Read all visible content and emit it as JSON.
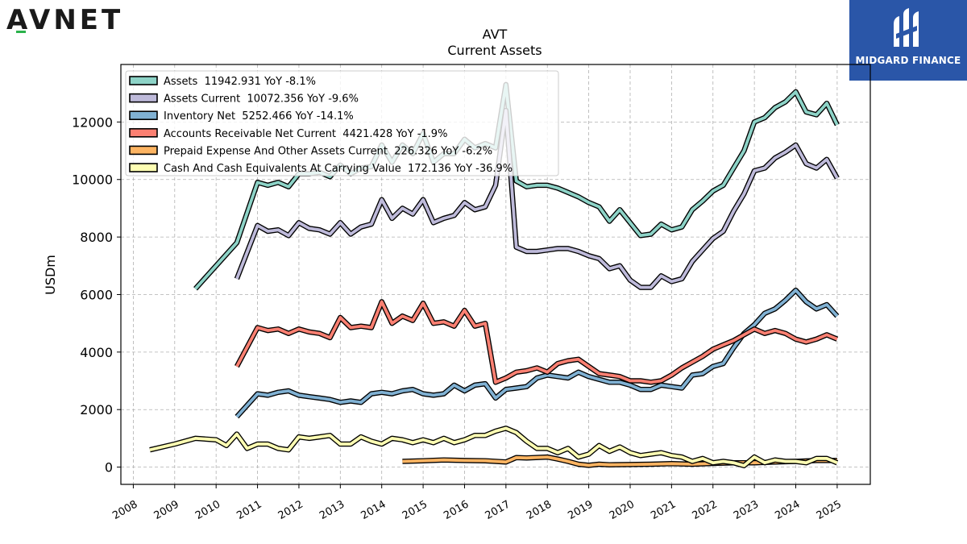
{
  "brand_left": {
    "text": "AVNET",
    "accent_color": "#2bb24c"
  },
  "brand_right": {
    "text": "MIDGARD FINANCE",
    "bg_color": "#2a56a8"
  },
  "chart_data": {
    "type": "line",
    "title": "AVT",
    "subtitle": "Current  Assets",
    "ylabel": "USDm",
    "xlabel": "",
    "xlim": [
      2007.7,
      2025.8
    ],
    "ylim": [
      -600,
      14000
    ],
    "yticks": [
      0,
      2000,
      4000,
      6000,
      8000,
      10000,
      12000
    ],
    "xticks": [
      "2008",
      "2009",
      "2010",
      "2011",
      "2012",
      "2013",
      "2014",
      "2015",
      "2016",
      "2017",
      "2018",
      "2019",
      "2020",
      "2021",
      "2022",
      "2023",
      "2024",
      "2025"
    ],
    "grid": true,
    "legend_position": "top-left",
    "series": [
      {
        "name": "Assets",
        "legend": "Assets  11942.931 YoY -8.1%",
        "color": "#8dd3c7",
        "x": [
          2009.5,
          2010.5,
          2011.0,
          2011.25,
          2011.5,
          2011.75,
          2012.0,
          2012.25,
          2012.5,
          2012.75,
          2013.0,
          2013.25,
          2013.5,
          2013.75,
          2014.0,
          2014.25,
          2014.5,
          2014.75,
          2015.0,
          2015.25,
          2015.5,
          2015.75,
          2016.0,
          2016.25,
          2016.5,
          2016.75,
          2017.0,
          2017.25,
          2017.5,
          2017.75,
          2018.0,
          2018.25,
          2018.5,
          2018.75,
          2019.0,
          2019.25,
          2019.5,
          2019.75,
          2020.0,
          2020.25,
          2020.5,
          2020.75,
          2021.0,
          2021.25,
          2021.5,
          2021.75,
          2022.0,
          2022.25,
          2022.5,
          2022.75,
          2023.0,
          2023.25,
          2023.5,
          2023.75,
          2024.0,
          2024.25,
          2024.5,
          2024.75,
          2025.0
        ],
        "y": [
          6200,
          7800,
          9900,
          9800,
          9900,
          9750,
          10200,
          10200,
          10250,
          10100,
          10500,
          10200,
          10400,
          10450,
          11200,
          10600,
          11200,
          10900,
          11600,
          10600,
          10900,
          10900,
          11400,
          11100,
          11250,
          11100,
          13300,
          9950,
          9750,
          9800,
          9800,
          9700,
          9550,
          9400,
          9200,
          9050,
          8550,
          8950,
          8500,
          8050,
          8100,
          8450,
          8250,
          8350,
          8950,
          9250,
          9600,
          9800,
          10400,
          11000,
          12000,
          12150,
          12500,
          12700,
          13050,
          12350,
          12250,
          12650,
          11900
        ]
      },
      {
        "name": "Assets Current",
        "legend": "Assets Current  10072.356 YoY -9.6%",
        "color": "#bebada",
        "x": [
          2010.5,
          2011.0,
          2011.25,
          2011.5,
          2011.75,
          2012.0,
          2012.25,
          2012.5,
          2012.75,
          2013.0,
          2013.25,
          2013.5,
          2013.75,
          2014.0,
          2014.25,
          2014.5,
          2014.75,
          2015.0,
          2015.25,
          2015.5,
          2015.75,
          2016.0,
          2016.25,
          2016.5,
          2016.75,
          2017.0,
          2017.25,
          2017.5,
          2017.75,
          2018.0,
          2018.25,
          2018.5,
          2018.75,
          2019.0,
          2019.25,
          2019.5,
          2019.75,
          2020.0,
          2020.25,
          2020.5,
          2020.75,
          2021.0,
          2021.25,
          2021.5,
          2021.75,
          2022.0,
          2022.25,
          2022.5,
          2022.75,
          2023.0,
          2023.25,
          2023.5,
          2023.75,
          2024.0,
          2024.25,
          2024.5,
          2024.75,
          2025.0
        ],
        "y": [
          6550,
          8400,
          8200,
          8250,
          8050,
          8500,
          8300,
          8250,
          8100,
          8500,
          8100,
          8350,
          8450,
          9300,
          8650,
          9000,
          8800,
          9300,
          8500,
          8650,
          8750,
          9200,
          8950,
          9050,
          9800,
          12400,
          7650,
          7500,
          7500,
          7550,
          7600,
          7600,
          7500,
          7350,
          7250,
          6900,
          7000,
          6500,
          6250,
          6250,
          6650,
          6450,
          6550,
          7150,
          7550,
          7950,
          8200,
          8900,
          9500,
          10300,
          10400,
          10750,
          10950,
          11200,
          10550,
          10400,
          10700,
          10050
        ]
      },
      {
        "name": "Inventory Net",
        "legend": "Inventory Net  5252.466 YoY -14.1%",
        "color": "#80b1d3",
        "x": [
          2010.5,
          2011.0,
          2011.25,
          2011.5,
          2011.75,
          2012.0,
          2012.25,
          2012.5,
          2012.75,
          2013.0,
          2013.25,
          2013.5,
          2013.75,
          2014.0,
          2014.25,
          2014.5,
          2014.75,
          2015.0,
          2015.25,
          2015.5,
          2015.75,
          2016.0,
          2016.25,
          2016.5,
          2016.75,
          2017.0,
          2017.25,
          2017.5,
          2017.75,
          2018.0,
          2018.25,
          2018.5,
          2018.75,
          2019.0,
          2019.25,
          2019.5,
          2019.75,
          2020.0,
          2020.25,
          2020.5,
          2020.75,
          2021.0,
          2021.25,
          2021.5,
          2021.75,
          2022.0,
          2022.25,
          2022.5,
          2022.75,
          2023.0,
          2023.25,
          2023.5,
          2023.75,
          2024.0,
          2024.25,
          2024.5,
          2024.75,
          2025.0
        ],
        "y": [
          1750,
          2550,
          2500,
          2600,
          2650,
          2500,
          2450,
          2400,
          2350,
          2250,
          2300,
          2250,
          2550,
          2600,
          2550,
          2650,
          2700,
          2550,
          2500,
          2550,
          2850,
          2650,
          2850,
          2900,
          2400,
          2700,
          2750,
          2800,
          3100,
          3200,
          3150,
          3100,
          3300,
          3150,
          3050,
          2950,
          2950,
          2850,
          2700,
          2700,
          2850,
          2800,
          2750,
          3200,
          3250,
          3500,
          3600,
          4150,
          4650,
          4950,
          5350,
          5500,
          5800,
          6150,
          5750,
          5500,
          5650,
          5250
        ]
      },
      {
        "name": "Accounts Receivable Net Current",
        "legend": "Accounts Receivable Net Current  4421.428 YoY -1.9%",
        "color": "#fb8072",
        "x": [
          2010.5,
          2011.0,
          2011.25,
          2011.5,
          2011.75,
          2012.0,
          2012.25,
          2012.5,
          2012.75,
          2013.0,
          2013.25,
          2013.5,
          2013.75,
          2014.0,
          2014.25,
          2014.5,
          2014.75,
          2015.0,
          2015.25,
          2015.5,
          2015.75,
          2016.0,
          2016.25,
          2016.5,
          2016.75,
          2017.0,
          2017.25,
          2017.5,
          2017.75,
          2018.0,
          2018.25,
          2018.5,
          2018.75,
          2019.0,
          2019.25,
          2019.5,
          2019.75,
          2020.0,
          2020.25,
          2020.5,
          2020.75,
          2021.0,
          2021.25,
          2021.5,
          2021.75,
          2022.0,
          2022.25,
          2022.5,
          2022.75,
          2023.0,
          2023.25,
          2023.5,
          2023.75,
          2024.0,
          2024.25,
          2024.5,
          2024.75,
          2025.0
        ],
        "y": [
          3500,
          4850,
          4750,
          4800,
          4650,
          4800,
          4700,
          4650,
          4500,
          5200,
          4850,
          4900,
          4850,
          5750,
          5000,
          5250,
          5100,
          5700,
          5000,
          5050,
          4900,
          5450,
          4900,
          5000,
          2950,
          3100,
          3300,
          3350,
          3450,
          3300,
          3600,
          3700,
          3750,
          3500,
          3250,
          3200,
          3150,
          3000,
          3000,
          2950,
          3000,
          3200,
          3450,
          3650,
          3850,
          4100,
          4250,
          4400,
          4600,
          4800,
          4650,
          4750,
          4650,
          4450,
          4350,
          4450,
          4600,
          4450
        ]
      },
      {
        "name": "Prepaid Expense And Other Assets Current",
        "legend": "Prepaid Expense And Other Assets Current  226.326 YoY -6.2%",
        "color": "#fdb462",
        "x": [
          2014.5,
          2015.0,
          2015.5,
          2016.0,
          2016.5,
          2017.0,
          2017.25,
          2017.5,
          2018.0,
          2018.25,
          2018.5,
          2018.75,
          2019.0,
          2019.25,
          2019.5,
          2020.0,
          2020.5,
          2021.0,
          2021.5,
          2022.0,
          2022.5,
          2023.0,
          2023.5,
          2024.0,
          2024.5,
          2025.0
        ],
        "y": [
          200,
          220,
          250,
          230,
          220,
          180,
          330,
          320,
          350,
          280,
          200,
          100,
          60,
          100,
          80,
          90,
          100,
          120,
          100,
          130,
          150,
          150,
          180,
          200,
          230,
          230
        ]
      },
      {
        "name": "Cash And Cash Equivalents At Carrying Value",
        "legend": "Cash And Cash Equivalents At Carrying Value  172.136 YoY -36.9%",
        "color": "#ffffb3",
        "x": [
          2008.4,
          2009.0,
          2009.5,
          2010.0,
          2010.25,
          2010.5,
          2010.75,
          2011.0,
          2011.25,
          2011.5,
          2011.75,
          2012.0,
          2012.25,
          2012.5,
          2012.75,
          2013.0,
          2013.25,
          2013.5,
          2013.75,
          2014.0,
          2014.25,
          2014.5,
          2014.75,
          2015.0,
          2015.25,
          2015.5,
          2015.75,
          2016.0,
          2016.25,
          2016.5,
          2016.75,
          2017.0,
          2017.25,
          2017.5,
          2017.75,
          2018.0,
          2018.25,
          2018.5,
          2018.75,
          2019.0,
          2019.25,
          2019.5,
          2019.75,
          2020.0,
          2020.25,
          2020.5,
          2020.75,
          2021.0,
          2021.25,
          2021.5,
          2021.75,
          2022.0,
          2022.25,
          2022.5,
          2022.75,
          2023.0,
          2023.25,
          2023.5,
          2023.75,
          2024.0,
          2024.25,
          2024.5,
          2024.75,
          2025.0
        ],
        "y": [
          600,
          800,
          1000,
          950,
          750,
          1150,
          650,
          800,
          800,
          650,
          600,
          1050,
          1000,
          1050,
          1100,
          800,
          800,
          1050,
          900,
          800,
          1000,
          950,
          850,
          950,
          850,
          1000,
          850,
          950,
          1100,
          1100,
          1250,
          1350,
          1200,
          900,
          650,
          650,
          500,
          650,
          350,
          450,
          750,
          550,
          700,
          500,
          400,
          450,
          500,
          400,
          350,
          200,
          300,
          150,
          200,
          150,
          50,
          350,
          150,
          250,
          200,
          200,
          150,
          300,
          300,
          150
        ]
      }
    ]
  }
}
